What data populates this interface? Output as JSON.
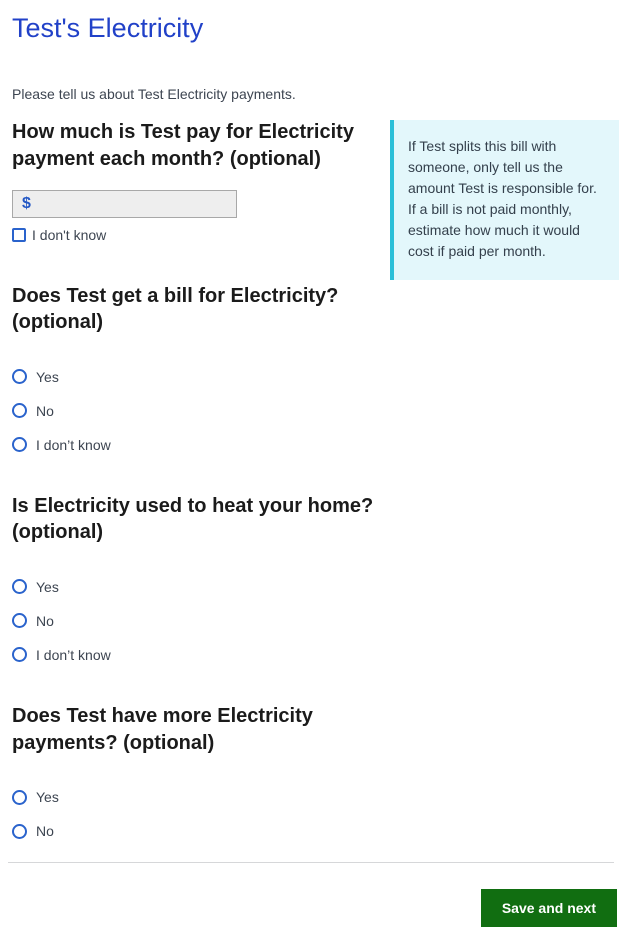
{
  "page": {
    "title": "Test's Electricity",
    "intro": "Please tell us about Test Electricity payments."
  },
  "questions": [
    {
      "heading": "How much is Test pay for Electricity payment each month? (optional)",
      "currency_prefix": "$",
      "input_value": "",
      "checkbox_label": "I don't know"
    },
    {
      "heading": "Does Test get a bill for Electricity? (optional)",
      "options": [
        "Yes",
        "No",
        "I don’t know"
      ]
    },
    {
      "heading": "Is Electricity used to heat your home? (optional)",
      "options": [
        "Yes",
        "No",
        "I don’t know"
      ]
    },
    {
      "heading": "Does Test have more Electricity payments? (optional)",
      "options": [
        "Yes",
        "No"
      ]
    }
  ],
  "info_box": {
    "text": "If Test splits this bill with someone, only tell us the amount Test is responsible for. If a bill is not paid monthly, estimate how much it would cost if paid per month."
  },
  "footer": {
    "save_button_label": "Save and next"
  },
  "colors": {
    "title_blue": "#2141c8",
    "control_blue": "#2a63cc",
    "dollar_blue": "#2458c5",
    "info_border_teal": "#2bbfd8",
    "info_bg": "#e3f7fb",
    "button_green": "#116e11",
    "heading_black": "#1b1b1b",
    "body_gray": "#3d4551",
    "input_bg": "#eeeeee",
    "input_border": "#a8a8a8",
    "divider_gray": "#d6d7d9"
  }
}
